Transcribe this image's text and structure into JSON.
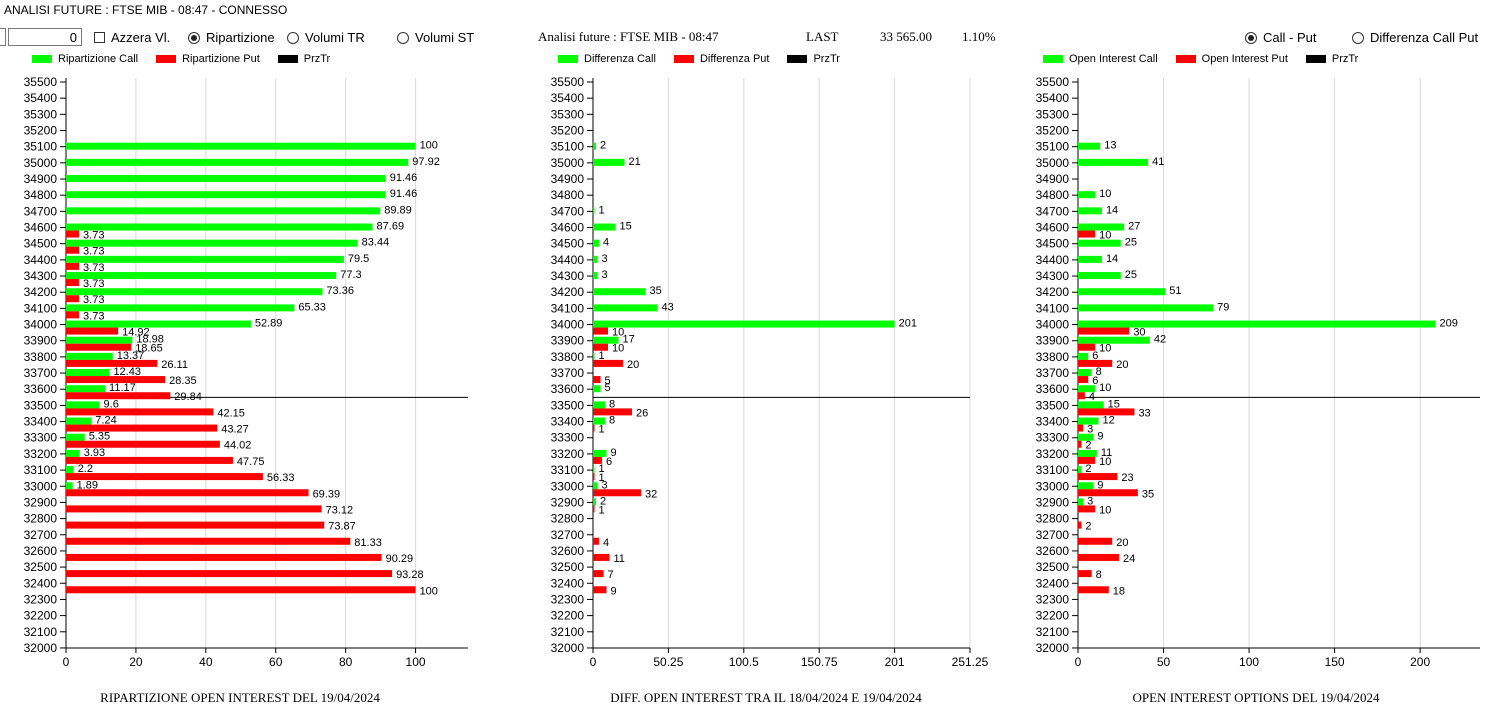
{
  "window": {
    "title": "ANALISI FUTURE : FTSE MIB - 08:47 - CONNESSO"
  },
  "controls": {
    "spinner_value": "0",
    "azzera_label": "Azzera Vl.",
    "ripartizione_label": "Ripartizione",
    "volumi_tr_label": "Volumi TR",
    "volumi_st_label": "Volumi ST",
    "call_put_label": "Call - Put",
    "diff_call_put_label": "Differenza Call Put"
  },
  "header": {
    "title": "Analisi future : FTSE MIB - 08:47",
    "last_label": "LAST",
    "last_value": "33 565.00",
    "change": "1.10%"
  },
  "colors": {
    "call": "#00ff00",
    "put": "#ff0000",
    "prz": "#000000",
    "grid": "#d9d9d9"
  },
  "strikes": [
    "35500",
    "35400",
    "35300",
    "35200",
    "35100",
    "35000",
    "34900",
    "34800",
    "34700",
    "34600",
    "34500",
    "34400",
    "34300",
    "34200",
    "34100",
    "34000",
    "33900",
    "33800",
    "33700",
    "33600",
    "33500",
    "33400",
    "33300",
    "33200",
    "33100",
    "33000",
    "32900",
    "32800",
    "32700",
    "32600",
    "32500",
    "32400",
    "32300",
    "32200",
    "32100",
    "32000"
  ],
  "chart_data": [
    {
      "type": "bar",
      "orientation": "horizontal",
      "title": "RIPARTIZIONE OPEN INTEREST DEL 19/04/2024",
      "legend": [
        "Ripartizione Call",
        "Ripartizione Put",
        "PrzTr"
      ],
      "xlim": [
        0,
        115
      ],
      "xticks": [
        0,
        20,
        40,
        60,
        80,
        100
      ],
      "xtick_labels": [
        "0",
        "20",
        "40",
        "60",
        "80",
        "100"
      ],
      "price_line_between": [
        "33600",
        "33500"
      ],
      "series": [
        {
          "name": "Ripartizione Call",
          "values": [
            null,
            null,
            null,
            null,
            100,
            97.92,
            91.46,
            91.46,
            89.89,
            87.69,
            83.44,
            79.5,
            77.3,
            73.36,
            65.33,
            52.89,
            18.98,
            13.37,
            12.43,
            11.17,
            9.6,
            7.24,
            5.35,
            3.93,
            2.2,
            1.89,
            null,
            null,
            null,
            null,
            null,
            null,
            null,
            null,
            null,
            null
          ],
          "labels": [
            "",
            "",
            "",
            "",
            "100",
            "97.92",
            "91.46",
            "91.46",
            "89.89",
            "87.69",
            "83.44",
            "79.5",
            "77.3",
            "73.36",
            "65.33",
            "52.89",
            "18.98",
            "13.37",
            "12.43",
            "11.17",
            "9.6",
            "7.24",
            "5.35",
            "3.93",
            "2.2",
            "1.89",
            "",
            "",
            "",
            "",
            "",
            "",
            "",
            "",
            "",
            ""
          ]
        },
        {
          "name": "Ripartizione Put",
          "values": [
            null,
            null,
            null,
            null,
            null,
            null,
            null,
            null,
            null,
            3.73,
            3.73,
            3.73,
            3.73,
            3.73,
            3.73,
            14.92,
            18.65,
            26.11,
            28.35,
            29.84,
            42.15,
            43.27,
            44.02,
            47.75,
            56.33,
            69.39,
            73.12,
            73.87,
            81.33,
            90.29,
            93.28,
            100,
            null,
            null,
            null,
            null
          ],
          "labels": [
            "",
            "",
            "",
            "",
            "",
            "",
            "",
            "",
            "",
            "3.73",
            "3.73",
            "3.73",
            "3.73",
            "3.73",
            "3.73",
            "14.92",
            "18.65",
            "26.11",
            "28.35",
            "29.84",
            "42.15",
            "43.27",
            "44.02",
            "47.75",
            "56.33",
            "69.39",
            "73.12",
            "73.87",
            "81.33",
            "90.29",
            "93.28",
            "100",
            "",
            "",
            "",
            ""
          ]
        }
      ]
    },
    {
      "type": "bar",
      "orientation": "horizontal",
      "title": "DIFF. OPEN INTEREST TRA IL 18/04/2024 E 19/04/2024",
      "legend": [
        "Differenza Call",
        "Differenza Put",
        "PrzTr"
      ],
      "xlim": [
        0,
        251.25
      ],
      "xticks": [
        0,
        50.25,
        100.5,
        150.75,
        201,
        251.25
      ],
      "xtick_labels": [
        "0",
        "50.25",
        "100.5",
        "150.75",
        "201",
        "251.25"
      ],
      "price_line_between": [
        "33600",
        "33500"
      ],
      "series": [
        {
          "name": "Differenza Call",
          "values": [
            null,
            null,
            null,
            null,
            2,
            21,
            null,
            null,
            1,
            15,
            4,
            3,
            3,
            35,
            43,
            201,
            17,
            1,
            null,
            5,
            8,
            8,
            null,
            9,
            1,
            3,
            2,
            null,
            null,
            null,
            null,
            null,
            null,
            null,
            null,
            null
          ],
          "labels": [
            "",
            "",
            "",
            "",
            "2",
            "21",
            "",
            "",
            "1",
            "15",
            "4",
            "3",
            "3",
            "35",
            "43",
            "201",
            "17",
            "1",
            "",
            "5",
            "8",
            "8",
            "",
            "9",
            "1",
            "3",
            "2",
            "",
            "",
            "",
            "",
            "",
            "",
            "",
            "",
            ""
          ]
        },
        {
          "name": "Differenza Put",
          "values": [
            null,
            null,
            null,
            null,
            null,
            null,
            null,
            null,
            null,
            null,
            null,
            null,
            null,
            null,
            null,
            10,
            10,
            20,
            5,
            null,
            26,
            1,
            null,
            6,
            1,
            32,
            1,
            null,
            4,
            11,
            7,
            9,
            null,
            null,
            null,
            null
          ],
          "labels": [
            "",
            "",
            "",
            "",
            "",
            "",
            "",
            "",
            "",
            "",
            "",
            "",
            "",
            "",
            "",
            "10",
            "10",
            "20",
            "5",
            "",
            "26",
            "1",
            "",
            "6",
            "1",
            "32",
            "1",
            "",
            "4",
            "11",
            "7",
            "9",
            "",
            "",
            "",
            ""
          ]
        }
      ]
    },
    {
      "type": "bar",
      "orientation": "horizontal",
      "title": "OPEN INTEREST OPTIONS DEL 19/04/2024",
      "legend": [
        "Open Interest Call",
        "Open Interest Put",
        "PrzTr"
      ],
      "xlim": [
        0,
        235
      ],
      "xticks": [
        0,
        50,
        100,
        150,
        200
      ],
      "xtick_labels": [
        "0",
        "50",
        "100",
        "150",
        "200"
      ],
      "price_line_between": [
        "33600",
        "33500"
      ],
      "series": [
        {
          "name": "Open Interest Call",
          "values": [
            null,
            null,
            null,
            null,
            13,
            41,
            null,
            10,
            14,
            27,
            25,
            14,
            25,
            51,
            79,
            209,
            42,
            6,
            8,
            10,
            15,
            12,
            9,
            11,
            2,
            9,
            3,
            null,
            null,
            null,
            null,
            null,
            null,
            null,
            null,
            null
          ],
          "labels": [
            "",
            "",
            "",
            "",
            "13",
            "41",
            "",
            "10",
            "14",
            "27",
            "25",
            "14",
            "25",
            "51",
            "79",
            "209",
            "42",
            "6",
            "8",
            "10",
            "15",
            "12",
            "9",
            "11",
            "2",
            "9",
            "3",
            "",
            "",
            "",
            "",
            "",
            "",
            "",
            "",
            ""
          ]
        },
        {
          "name": "Open Interest Put",
          "values": [
            null,
            null,
            null,
            null,
            null,
            null,
            null,
            null,
            null,
            10,
            null,
            null,
            null,
            null,
            null,
            30,
            10,
            20,
            6,
            4,
            33,
            3,
            2,
            10,
            23,
            35,
            10,
            2,
            20,
            24,
            8,
            18,
            null,
            null,
            null,
            null
          ],
          "labels": [
            "",
            "",
            "",
            "",
            "",
            "",
            "",
            "",
            "",
            "10",
            "",
            "",
            "",
            "",
            "",
            "30",
            "10",
            "20",
            "6",
            "4",
            "33",
            "3",
            "2",
            "10",
            "23",
            "35",
            "10",
            "2",
            "20",
            "24",
            "8",
            "18",
            "",
            "",
            "",
            ""
          ]
        }
      ]
    }
  ]
}
